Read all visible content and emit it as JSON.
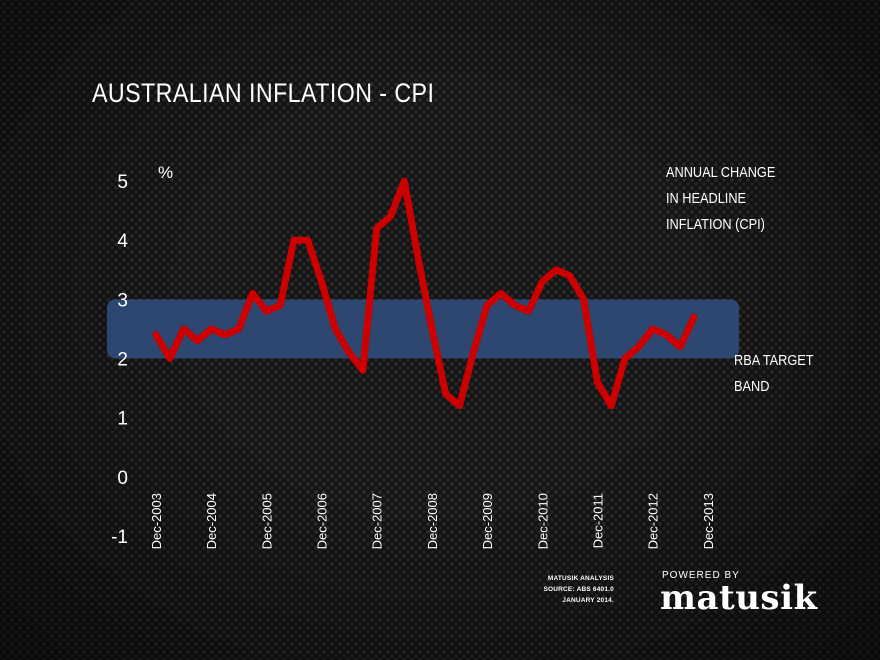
{
  "chart_data": {
    "type": "line",
    "title": "AUSTRALIAN INFLATION - CPI",
    "ylabel": "%",
    "ylim": [
      -1,
      5
    ],
    "yticks": [
      "5",
      "4",
      "3",
      "2",
      "1",
      "0",
      "-1"
    ],
    "xticks": [
      "Dec-2003",
      "Dec-2004",
      "Dec-2005",
      "Dec-2006",
      "Dec-2007",
      "Dec-2008",
      "Dec-2009",
      "Dec-2010",
      "Dec-2011",
      "Dec-2012",
      "Dec-2013"
    ],
    "series": [
      {
        "color": "#cc0000",
        "values": [
          2.4,
          2.0,
          2.5,
          2.3,
          2.5,
          2.4,
          2.5,
          3.1,
          2.8,
          2.9,
          4.0,
          4.0,
          3.3,
          2.5,
          2.1,
          1.8,
          4.2,
          4.4,
          5.0,
          3.7,
          2.5,
          1.4,
          1.2,
          2.1,
          2.9,
          3.1,
          2.9,
          2.8,
          3.3,
          3.5,
          3.4,
          3.0,
          1.6,
          1.2,
          2.0,
          2.2,
          2.5,
          2.4,
          2.2,
          2.7
        ]
      }
    ],
    "target_band": {
      "low": 2,
      "high": 3,
      "color": "#2f4b78"
    },
    "annotations": {
      "series_label": [
        "ANNUAL CHANGE",
        "IN HEADLINE",
        "INFLATION (CPI)"
      ],
      "band_label": [
        "RBA TARGET",
        "BAND"
      ]
    },
    "grid": false,
    "legend": "none"
  },
  "footer": {
    "source_lines": [
      "MATUSIK ANALYSIS",
      "SOURCE: ABS 6401.0",
      "JANUARY 2014."
    ],
    "logo_top": "POWERED BY",
    "logo_word": "matusik"
  }
}
